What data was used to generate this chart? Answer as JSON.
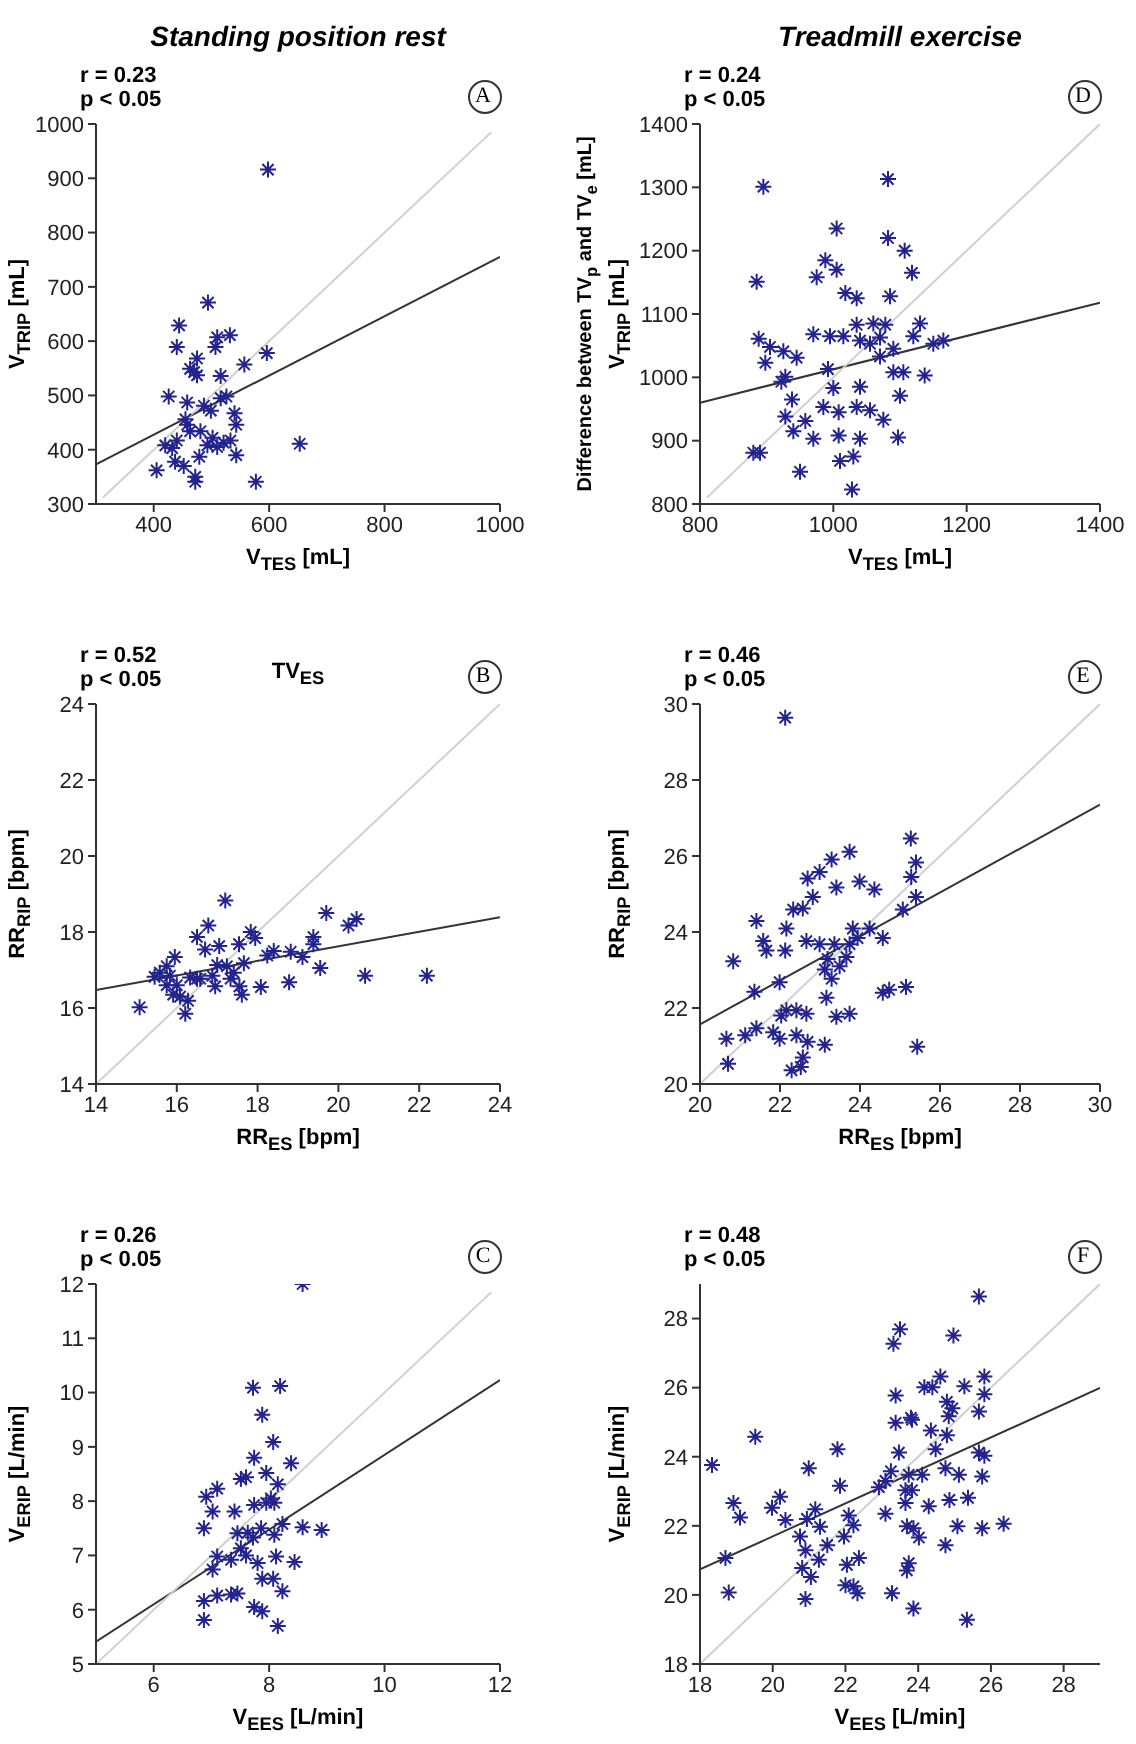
{
  "chart_data": [
    {
      "type": "scatter",
      "title": "Standing position rest",
      "xlabel": "V$_{TES}$ [mL]",
      "ylabel": "V$_{TRIP}$ [mL]",
      "annotations": [
        "r = 0.23",
        "p < 0.05",
        "A"
      ],
      "xlim": [
        300,
        1000
      ],
      "ylim": [
        300,
        1000
      ],
      "xticks": [
        400,
        600,
        800,
        1000
      ],
      "yticks": [
        300,
        400,
        500,
        600,
        700,
        800,
        900,
        1000
      ],
      "series": [
        {
          "marker": "cross",
          "color": "#23238e",
          "x": [
            598,
            494,
            444,
            440,
            532,
            510,
            475,
            470,
            463,
            475,
            516,
            557,
            596,
            507,
            426,
            458,
            526,
            516,
            487,
            499,
            540,
            543,
            458,
            463,
            455,
            440,
            432,
            420,
            452,
            437,
            405,
            472,
            472,
            577,
            653,
            543,
            502,
            493,
            510,
            521,
            533,
            479,
            481
          ],
          "values": [
            916,
            671,
            629,
            589,
            611,
            607,
            568,
            543,
            549,
            537,
            536,
            557,
            578,
            589,
            498,
            487,
            498,
            495,
            481,
            472,
            467,
            446,
            446,
            434,
            456,
            417,
            403,
            408,
            370,
            378,
            362,
            350,
            341,
            341,
            411,
            390,
            422,
            408,
            405,
            413,
            417,
            387,
            434
          ]
        },
        {
          "type": "line",
          "color": "#333333",
          "x": [
            300,
            1000
          ],
          "values": [
            373,
            755
          ]
        },
        {
          "type": "line",
          "color": "#d0d0d0",
          "x": [
            312,
            985
          ],
          "values": [
            312,
            985
          ]
        }
      ]
    },
    {
      "type": "scatter",
      "title": "Treadmill exercise",
      "xlabel": "V$_{TES}$ [mL]",
      "ylabel": "V$_{TRIP}$ [mL]",
      "annotations": [
        "r = 0.24",
        "p < 0.05",
        "D",
        "Difference between TV$_{p}$ and TV$_{e}$ [mL]"
      ],
      "xlim": [
        800,
        1400
      ],
      "ylim": [
        800,
        1400
      ],
      "xticks": [
        800,
        1000,
        1200,
        1400
      ],
      "yticks": [
        800,
        900,
        1000,
        1100,
        1200,
        1300,
        1400
      ],
      "series": [
        {
          "marker": "cross",
          "color": "#23238e",
          "x": [
            895,
            1082,
            1005,
            1082,
            1107,
            885,
            988,
            1005,
            975,
            1118,
            1018,
            1035,
            1085,
            888,
            905,
            925,
            945,
            898,
            922,
            928,
            970,
            995,
            1035,
            1060,
            1078,
            1040,
            1070,
            1090,
            1105,
            1090,
            1130,
            1120,
            1150,
            1165,
            1137,
            992,
            1000,
            1040,
            938,
            928,
            940,
            958,
            985,
            1008,
            1035,
            1055,
            1075,
            1100,
            970,
            1008,
            1040,
            1097,
            880,
            890,
            950,
            1010,
            1030,
            1028,
            1015,
            1055,
            1070
          ],
          "values": [
            1301,
            1313,
            1235,
            1220,
            1200,
            1151,
            1185,
            1170,
            1158,
            1165,
            1133,
            1125,
            1128,
            1061,
            1048,
            1041,
            1031,
            1023,
            993,
            1001,
            1068,
            1065,
            1083,
            1085,
            1083,
            1058,
            1033,
            1045,
            1008,
            1008,
            1085,
            1065,
            1053,
            1058,
            1003,
            1013,
            983,
            985,
            965,
            938,
            915,
            931,
            953,
            945,
            953,
            948,
            933,
            971,
            903,
            908,
            903,
            905,
            881,
            881,
            851,
            868,
            875,
            823,
            1065,
            1053,
            1063
          ]
        },
        {
          "type": "line",
          "color": "#333333",
          "x": [
            800,
            1400
          ],
          "values": [
            960,
            1118
          ]
        },
        {
          "type": "line",
          "color": "#d0d0d0",
          "x": [
            810,
            1400
          ],
          "values": [
            810,
            1400
          ]
        }
      ]
    },
    {
      "type": "scatter",
      "xlabel": "RR$_{ES}$ [bpm]",
      "ylabel": "RR$_{RIP}$ [bpm]",
      "annotations": [
        "r = 0.52",
        "p < 0.05",
        "B",
        "TV$_{ES}$"
      ],
      "xlim": [
        14,
        24
      ],
      "ylim": [
        14,
        24
      ],
      "xticks": [
        14,
        16,
        18,
        20,
        22,
        24
      ],
      "yticks": [
        14,
        16,
        18,
        20,
        22,
        24
      ],
      "series": [
        {
          "marker": "cross",
          "color": "#23238e",
          "x": [
            17.2,
            19.7,
            20.45,
            20.25,
            16.78,
            16.5,
            17.83,
            19.38,
            17.94,
            17.54,
            17.05,
            16.7,
            18.4,
            18.82,
            19.38,
            15.95,
            15.75,
            15.58,
            15.45,
            15.83,
            16.33,
            16.58,
            16.88,
            17.0,
            17.24,
            17.66,
            17.33,
            17.41,
            17.55,
            17.61,
            16.95,
            16.5,
            18.08,
            18.78,
            19.11,
            19.55,
            20.66,
            22.19,
            15.08,
            15.75,
            15.91,
            16.08,
            16.28,
            16.21,
            16.0,
            18.24
          ],
          "values": [
            18.83,
            18.5,
            18.34,
            18.17,
            18.17,
            17.87,
            18.0,
            17.87,
            17.84,
            17.68,
            17.63,
            17.54,
            17.5,
            17.48,
            17.68,
            17.34,
            17.1,
            16.93,
            16.82,
            16.85,
            16.8,
            16.77,
            16.85,
            17.13,
            17.1,
            17.18,
            16.77,
            16.93,
            16.57,
            16.35,
            16.57,
            16.77,
            16.55,
            16.68,
            17.34,
            17.05,
            16.85,
            16.85,
            16.02,
            16.6,
            16.35,
            16.3,
            16.19,
            15.85,
            16.6,
            17.38
          ]
        },
        {
          "type": "line",
          "color": "#333333",
          "x": [
            14,
            24
          ],
          "values": [
            16.47,
            18.39
          ]
        },
        {
          "type": "line",
          "color": "#d0d0d0",
          "x": [
            14,
            24
          ],
          "values": [
            14,
            24
          ]
        }
      ]
    },
    {
      "type": "scatter",
      "xlabel": "RR$_{ES}$ [bpm]",
      "ylabel": "RR$_{RIP}$ [bpm]",
      "annotations": [
        "r = 0.46",
        "p < 0.05",
        "E"
      ],
      "xlim": [
        20,
        30
      ],
      "ylim": [
        20,
        30
      ],
      "xticks": [
        20,
        22,
        24,
        26,
        28,
        30
      ],
      "yticks": [
        20,
        22,
        24,
        26,
        28,
        30
      ],
      "series": [
        {
          "marker": "cross",
          "color": "#23238e",
          "x": [
            22.13,
            25.27,
            25.4,
            25.28,
            25.4,
            25.07,
            23.74,
            23.29,
            23.99,
            24.36,
            23.41,
            22.99,
            22.69,
            22.82,
            22.57,
            22.33,
            22.16,
            22.13,
            21.41,
            20.83,
            21.58,
            21.66,
            21.36,
            21.99,
            22.16,
            22.03,
            22.41,
            22.66,
            23.16,
            23.29,
            23.41,
            23.74,
            23.36,
            23.82,
            23.74,
            23.66,
            23.19,
            22.99,
            22.66,
            23.12,
            23.49,
            23.94,
            24.57,
            24.24,
            24.57,
            24.73,
            25.15,
            25.43,
            20.66,
            21.13,
            21.41,
            21.83,
            21.99,
            22.41,
            22.69,
            23.12,
            20.7,
            22.29,
            22.52,
            22.57
          ],
          "values": [
            29.64,
            26.46,
            25.83,
            25.45,
            24.92,
            24.59,
            26.11,
            25.91,
            25.33,
            25.12,
            25.17,
            25.58,
            25.41,
            24.92,
            24.62,
            24.59,
            24.09,
            23.51,
            24.29,
            23.23,
            23.76,
            23.51,
            22.43,
            22.68,
            21.94,
            21.8,
            21.94,
            21.85,
            22.27,
            22.77,
            21.77,
            21.85,
            23.68,
            24.09,
            23.68,
            23.34,
            23.29,
            23.68,
            23.76,
            23.01,
            23.1,
            23.84,
            23.84,
            24.09,
            22.4,
            22.48,
            22.55,
            20.98,
            21.19,
            21.28,
            21.47,
            21.36,
            21.19,
            21.28,
            21.11,
            21.03,
            20.53,
            20.36,
            20.45,
            20.7
          ]
        },
        {
          "type": "line",
          "color": "#333333",
          "x": [
            20,
            30
          ],
          "values": [
            21.57,
            27.35
          ]
        },
        {
          "type": "line",
          "color": "#d0d0d0",
          "x": [
            20,
            30
          ],
          "values": [
            20,
            30
          ]
        }
      ]
    },
    {
      "type": "scatter",
      "xlabel": "V$_{EES}$ [L/min]",
      "ylabel": "V$_{ERIP}$ [L/min]",
      "annotations": [
        "r = 0.26",
        "p < 0.05",
        "C"
      ],
      "xlim": [
        5,
        12
      ],
      "ylim": [
        5,
        12
      ],
      "xticks": [
        6,
        8,
        10,
        12
      ],
      "yticks": [
        5,
        6,
        7,
        8,
        9,
        10,
        11,
        12
      ],
      "series": [
        {
          "marker": "cross",
          "color": "#23238e",
          "x": [
            8.58,
            7.72,
            8.19,
            7.88,
            8.07,
            7.74,
            8.38,
            7.95,
            8.15,
            7.51,
            7.6,
            7.1,
            6.91,
            7.02,
            7.4,
            7.74,
            8.09,
            8.03,
            7.95,
            6.87,
            7.45,
            7.63,
            7.86,
            8.09,
            8.23,
            8.58,
            8.91,
            7.1,
            7.34,
            7.02,
            7.6,
            7.8,
            8.12,
            8.44,
            7.88,
            8.07,
            8.23,
            6.87,
            7.1,
            7.34,
            7.45,
            6.87,
            7.74,
            7.88,
            8.15,
            7.51,
            7.72
          ],
          "values": [
            12.0,
            10.09,
            10.12,
            9.59,
            9.09,
            8.8,
            8.7,
            8.52,
            8.31,
            8.41,
            8.44,
            8.23,
            8.08,
            7.81,
            7.81,
            7.93,
            7.97,
            8.05,
            7.97,
            7.5,
            7.41,
            7.42,
            7.5,
            7.38,
            7.58,
            7.52,
            7.47,
            6.98,
            6.92,
            6.74,
            7.0,
            6.86,
            6.98,
            6.88,
            6.57,
            6.57,
            6.34,
            6.16,
            6.26,
            6.28,
            6.3,
            5.81,
            6.05,
            5.97,
            5.7,
            7.13,
            7.33
          ]
        },
        {
          "type": "line",
          "color": "#333333",
          "x": [
            5,
            12
          ],
          "values": [
            5.41,
            10.23
          ]
        },
        {
          "type": "line",
          "color": "#d0d0d0",
          "x": [
            5,
            11.85
          ],
          "values": [
            5,
            11.85
          ]
        }
      ]
    },
    {
      "type": "scatter",
      "xlabel": "V$_{EES}$ [L/min]",
      "ylabel": "V$_{ERIP}$ [L/min]",
      "annotations": [
        "r = 0.48",
        "p < 0.05",
        "F"
      ],
      "xlim": [
        18,
        29
      ],
      "ylim": [
        18,
        29
      ],
      "xticks": [
        18,
        20,
        22,
        24,
        26,
        28
      ],
      "yticks": [
        18,
        20,
        22,
        24,
        26,
        28
      ],
      "series": [
        {
          "marker": "cross",
          "color": "#23238e",
          "x": [
            25.67,
            23.5,
            23.32,
            24.97,
            25.82,
            25.27,
            24.61,
            24.39,
            24.17,
            23.38,
            25.82,
            24.79,
            24.94,
            23.8,
            23.38,
            23.83,
            24.84,
            25.67,
            24.35,
            24.79,
            24.48,
            23.47,
            25.67,
            25.82,
            23.25,
            23.74,
            24.11,
            24.75,
            25.12,
            25.76,
            23.1,
            22.92,
            23.65,
            23.83,
            23.1,
            23.65,
            23.69,
            23.87,
            24.29,
            24.86,
            25.37,
            25.08,
            25.76,
            26.35,
            24.75,
            24.02,
            23.74,
            23.69,
            23.28,
            23.87,
            25.34,
            18.33,
            19.52,
            18.92,
            19.1,
            18.7,
            18.79,
            19.98,
            20.2,
            20.35,
            20.99,
            21.17,
            21.3,
            20.94,
            20.75,
            20.9,
            21.27,
            20.81,
            21.05,
            20.9,
            21.5,
            21.78,
            21.85,
            22.09,
            22.22,
            21.96,
            22.37,
            22.04,
            22.0,
            22.22,
            22.33
          ],
          "values": [
            28.64,
            27.69,
            27.27,
            27.51,
            26.32,
            26.04,
            26.32,
            26.01,
            26.01,
            25.77,
            25.81,
            25.59,
            25.4,
            25.13,
            24.98,
            25.07,
            25.17,
            25.31,
            24.76,
            24.62,
            24.22,
            24.12,
            24.12,
            24.03,
            23.58,
            23.48,
            23.48,
            23.67,
            23.48,
            23.43,
            23.3,
            23.12,
            23.03,
            23.03,
            22.35,
            22.66,
            21.99,
            21.93,
            22.57,
            22.75,
            22.81,
            21.99,
            21.93,
            22.06,
            21.44,
            21.66,
            20.92,
            20.71,
            20.05,
            19.61,
            19.28,
            23.76,
            24.58,
            22.66,
            22.24,
            21.07,
            20.07,
            22.52,
            22.84,
            22.17,
            23.67,
            22.48,
            21.97,
            22.2,
            21.69,
            21.29,
            21.02,
            20.78,
            20.52,
            19.88,
            21.44,
            24.22,
            23.16,
            22.3,
            22.02,
            21.69,
            21.07,
            20.87,
            20.28,
            20.25,
            20.05
          ]
        },
        {
          "type": "line",
          "color": "#333333",
          "x": [
            18,
            29
          ],
          "values": [
            20.74,
            25.99
          ]
        },
        {
          "type": "line",
          "color": "#d0d0d0",
          "x": [
            18,
            29
          ],
          "values": [
            18,
            29
          ]
        }
      ]
    }
  ]
}
